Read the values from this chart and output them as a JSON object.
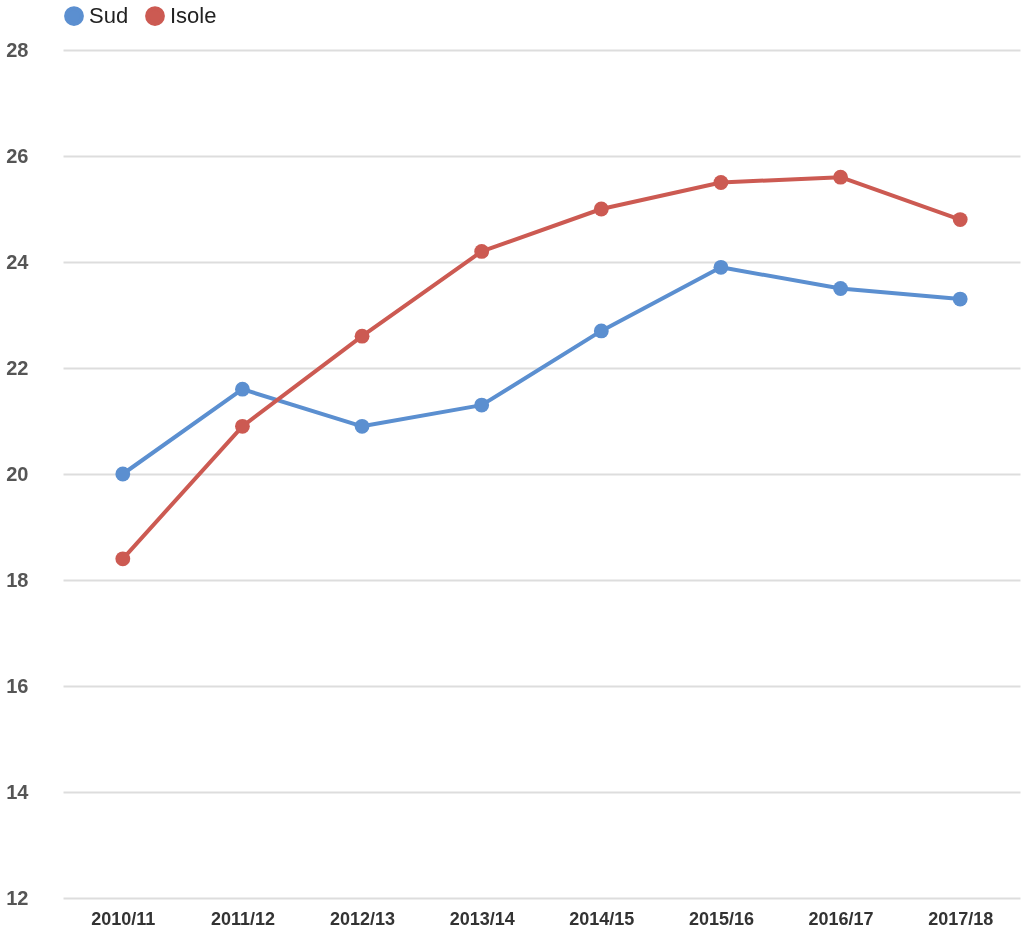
{
  "chart_data": {
    "type": "line",
    "categories": [
      "2010/11",
      "2011/12",
      "2012/13",
      "2013/14",
      "2014/15",
      "2015/16",
      "2016/17",
      "2017/18"
    ],
    "series": [
      {
        "name": "Sud",
        "color": "#5b8fd0",
        "values": [
          20.0,
          21.6,
          20.9,
          21.3,
          22.7,
          23.9,
          23.5,
          23.3
        ]
      },
      {
        "name": "Isole",
        "color": "#cc5a52",
        "values": [
          18.4,
          20.9,
          22.6,
          24.2,
          25.0,
          25.5,
          25.6,
          24.8
        ]
      }
    ],
    "ylim": [
      12,
      28
    ],
    "yticks": [
      12,
      14,
      16,
      18,
      20,
      22,
      24,
      26,
      28
    ],
    "grid": "y",
    "legend": "top",
    "marker": "circle",
    "line_style": "solid"
  }
}
